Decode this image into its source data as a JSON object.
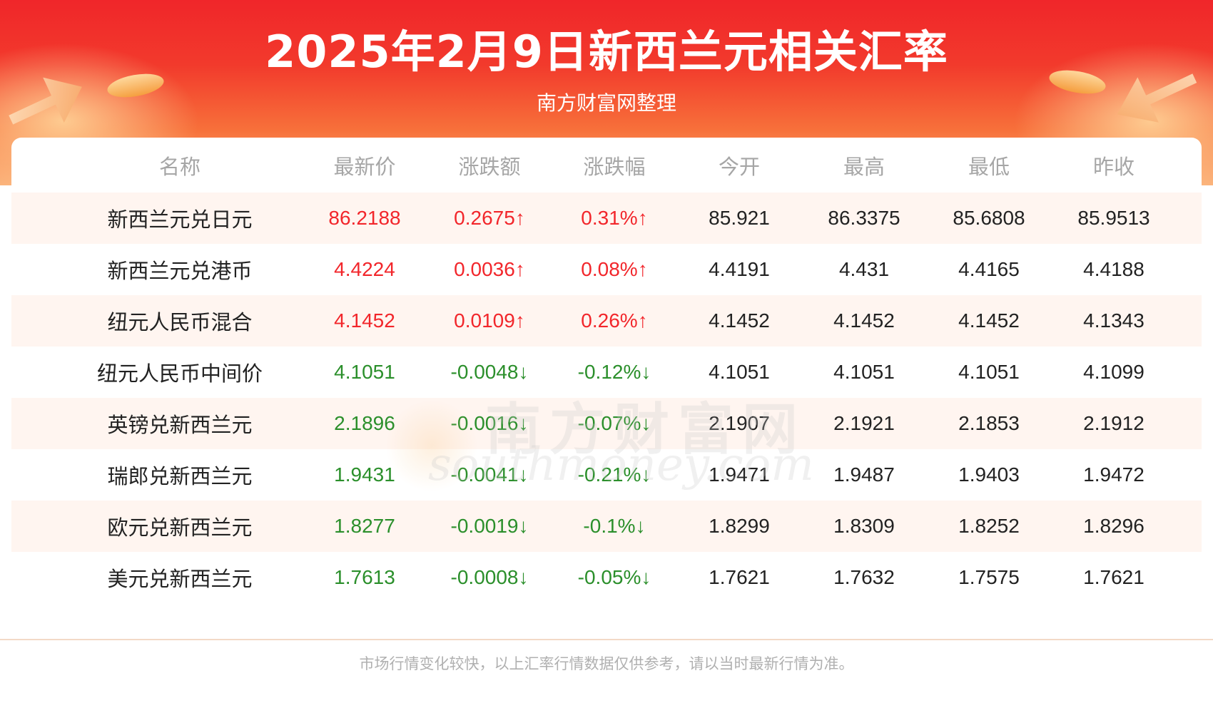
{
  "title": "2025年2月9日新西兰元相关汇率",
  "subtitle": "南方财富网整理",
  "watermark": {
    "cn": "南方财富网",
    "en": "southmoney.com"
  },
  "colors": {
    "up": "#f2262b",
    "down": "#2b8f2b",
    "header_bg": "#f0262a"
  },
  "table": {
    "headers": [
      "名称",
      "最新价",
      "涨跌额",
      "涨跌幅",
      "今开",
      "最高",
      "最低",
      "昨收"
    ],
    "rows": [
      {
        "name": "新西兰元兑日元",
        "trend": "up",
        "last": "86.2188",
        "change": "0.2675↑",
        "pct": "0.31%↑",
        "open": "85.921",
        "high": "86.3375",
        "low": "85.6808",
        "prev": "85.9513"
      },
      {
        "name": "新西兰元兑港币",
        "trend": "up",
        "last": "4.4224",
        "change": "0.0036↑",
        "pct": "0.08%↑",
        "open": "4.4191",
        "high": "4.431",
        "low": "4.4165",
        "prev": "4.4188"
      },
      {
        "name": "纽元人民币混合",
        "trend": "up",
        "last": "4.1452",
        "change": "0.0109↑",
        "pct": "0.26%↑",
        "open": "4.1452",
        "high": "4.1452",
        "low": "4.1452",
        "prev": "4.1343"
      },
      {
        "name": "纽元人民币中间价",
        "trend": "down",
        "last": "4.1051",
        "change": "-0.0048↓",
        "pct": "-0.12%↓",
        "open": "4.1051",
        "high": "4.1051",
        "low": "4.1051",
        "prev": "4.1099"
      },
      {
        "name": "英镑兑新西兰元",
        "trend": "down",
        "last": "2.1896",
        "change": "-0.0016↓",
        "pct": "-0.07%↓",
        "open": "2.1907",
        "high": "2.1921",
        "low": "2.1853",
        "prev": "2.1912"
      },
      {
        "name": "瑞郎兑新西兰元",
        "trend": "down",
        "last": "1.9431",
        "change": "-0.0041↓",
        "pct": "-0.21%↓",
        "open": "1.9471",
        "high": "1.9487",
        "low": "1.9403",
        "prev": "1.9472"
      },
      {
        "name": "欧元兑新西兰元",
        "trend": "down",
        "last": "1.8277",
        "change": "-0.0019↓",
        "pct": "-0.1%↓",
        "open": "1.8299",
        "high": "1.8309",
        "low": "1.8252",
        "prev": "1.8296"
      },
      {
        "name": "美元兑新西兰元",
        "trend": "down",
        "last": "1.7613",
        "change": "-0.0008↓",
        "pct": "-0.05%↓",
        "open": "1.7621",
        "high": "1.7632",
        "low": "1.7575",
        "prev": "1.7621"
      }
    ]
  },
  "footer": "市场行情变化较快，以上汇率行情数据仅供参考，请以当时最新行情为准。"
}
